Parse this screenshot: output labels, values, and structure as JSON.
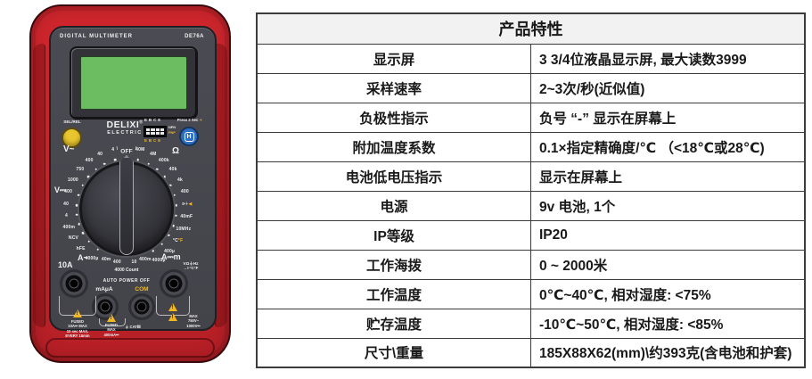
{
  "table": {
    "header": "产品特性",
    "rows": [
      {
        "label": "显示屏",
        "value": "3 3/4位液晶显示屏, 最大读数3999"
      },
      {
        "label": "采样速率",
        "value": "2~3次/秒(近似值)"
      },
      {
        "label": "负极性指示",
        "value": "负号 “-” 显示在屏幕上"
      },
      {
        "label": "附加温度系数",
        "value": "0.1×指定精确度/℃ （<18℃或28℃)"
      },
      {
        "label": "电池低电压指示",
        "value": "显示在屏幕上"
      },
      {
        "label": "电源",
        "value": "9v 电池, 1个"
      },
      {
        "label": "IP等级",
        "value": "IP20"
      },
      {
        "label": "工作海拨",
        "value": "0 ~ 2000米"
      },
      {
        "label": "工作温度",
        "value": "0℃~40℃, 相对湿度: <75%"
      },
      {
        "label": "贮存温度",
        "value": "-10℃~50℃, 相对湿度: <85%"
      },
      {
        "label": "尺寸\\重量",
        "value": "185X88X62(mm)\\约393克(含电池和护套)"
      }
    ]
  },
  "meter": {
    "top_left": "DIGITAL MULTIMETER",
    "model": "DE76A",
    "brand": "DELIXI",
    "brand_reg": "®",
    "brand_sub": "ELECTRIC",
    "sel_label": "SEL/REL",
    "hold_label": "Press 2 Sec",
    "hold_icon": "☀",
    "hold_button": "H",
    "socket_top": "EBCE",
    "socket_npn": "NPN",
    "socket_pnp": "PNP",
    "socket_bottom": "EBCE",
    "dial": {
      "off": "OFF",
      "groups": {
        "vac": "V~",
        "ohm": "Ω",
        "vdc": "V⎓",
        "aac": "A~",
        "adc": "A⎓m"
      },
      "labels": [
        {
          "t": "\\",
          "a": -9,
          "dot": false
        },
        {
          "t": "/",
          "a": 9,
          "dot": false
        },
        {
          "t": "40M",
          "a": 13
        },
        {
          "t": "4M",
          "a": 26
        },
        {
          "t": "400k",
          "a": 38
        },
        {
          "t": "40k",
          "a": 50
        },
        {
          "t": "4k",
          "a": 62
        },
        {
          "t": "400",
          "a": 74,
          "c": "y"
        },
        {
          "t": "⊳⊦",
          "t2": "◀",
          "a": 86
        },
        {
          "t": "40mF",
          "a": 98
        },
        {
          "t": "10MHz",
          "a": 110
        },
        {
          "t": "°C",
          "t2": "°F",
          "a": 122
        },
        {
          "t": "400µ",
          "a": 135
        },
        {
          "t": "4000µ",
          "a": 148
        },
        {
          "t": "400m",
          "a": 160
        },
        {
          "t": "10",
          "a": 172
        },
        {
          "t": "4",
          "a": -13
        },
        {
          "t": "40",
          "a": -26
        },
        {
          "t": "400",
          "a": -38
        },
        {
          "t": "750",
          "a": -50
        },
        {
          "t": "1000",
          "a": -62
        },
        {
          "t": "400",
          "a": -74,
          "c": "y"
        },
        {
          "t": "40",
          "a": -86
        },
        {
          "t": "4",
          "a": -97
        },
        {
          "t": "400m",
          "a": -108
        },
        {
          "t": "NCV",
          "a": -119
        },
        {
          "t": "hFE",
          "a": -131
        },
        {
          "t": "4000µ",
          "a": -145
        },
        {
          "t": "40m",
          "a": -158
        },
        {
          "t": "400",
          "a": -170
        }
      ]
    },
    "bottom": {
      "jack_10a": "10A",
      "count": "4000 Count",
      "auto_off": "AUTO POWER OFF",
      "maua": "mAμA",
      "com": "COM",
      "v_jack": "VΩ⏚Hz\n→⊦°C°F"
    },
    "warnings": {
      "left": "FUSED\n10A⎓ MAX\n10 sec MAX.\nEVERY 15min",
      "mid": "FUSED\nMAX\n400mA⎓",
      "right": "MAX\n750V~\n1000V⎓",
      "cat": "⏚ CATⅢ"
    },
    "colors": {
      "body_red": "#c8232a",
      "panel_gray": "#46464d",
      "lcd_green": "#6cbd62",
      "accent_yellow": "#f2b824",
      "button_yellow": "#e9c62f",
      "button_blue": "#2e6fc2"
    }
  }
}
